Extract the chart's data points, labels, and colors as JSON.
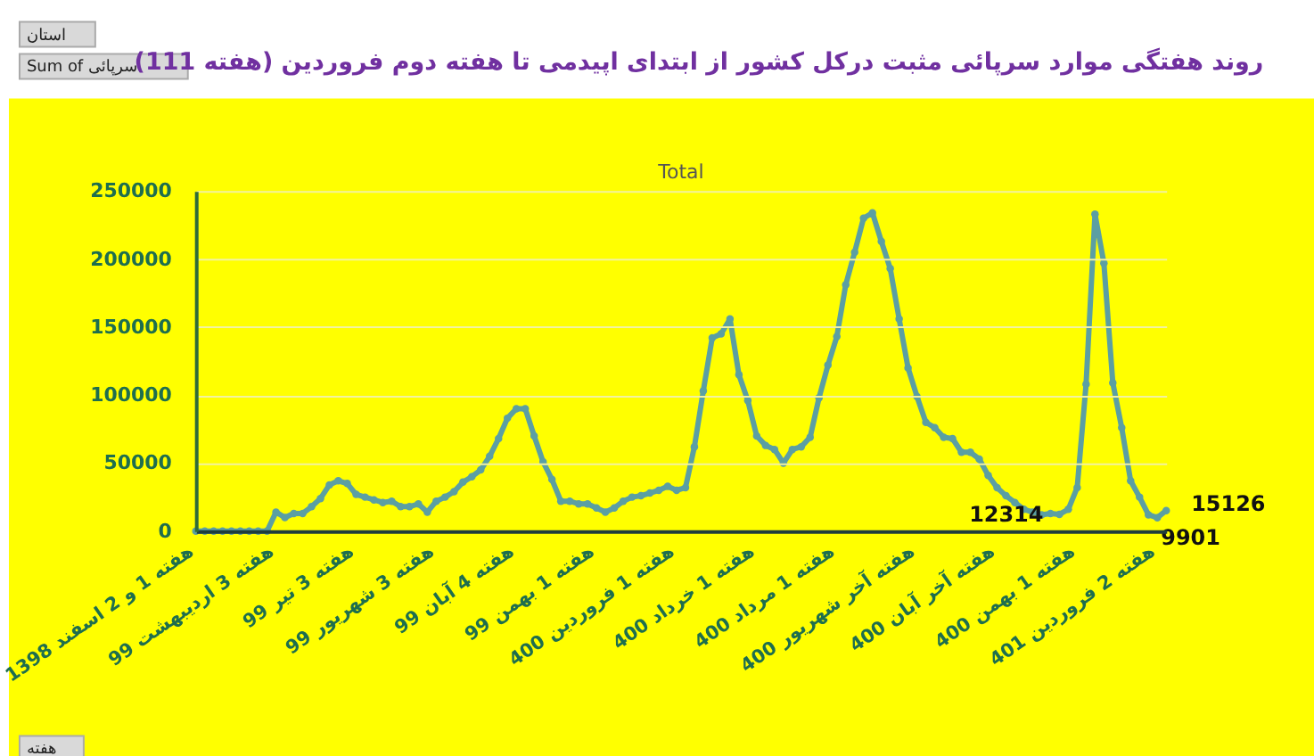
{
  "chart_data": {
    "type": "line",
    "title": "روند هفتگی موارد سرپائی مثبت درکل کشور از ابتدای اپیدمی تا هفته دوم فروردین (هفته 111)",
    "subtitle": "Total",
    "annotations": [
      "استان",
      "Sum of سرپائی",
      "هفته"
    ],
    "categories": [
      "هفته 1 و 2 اسفند 1398",
      null,
      null,
      null,
      null,
      null,
      null,
      null,
      null,
      "هفته 3 اردیبهشت 99",
      null,
      null,
      null,
      null,
      null,
      null,
      null,
      null,
      "هفته 3 تیر 99",
      null,
      null,
      null,
      null,
      null,
      null,
      null,
      null,
      "هفته 3 شهریور 99",
      null,
      null,
      null,
      null,
      null,
      null,
      null,
      null,
      "هفته 4 آبان 99",
      null,
      null,
      null,
      null,
      null,
      null,
      null,
      null,
      "هفته 1 بهمن 99",
      null,
      null,
      null,
      null,
      null,
      null,
      null,
      null,
      "هفته 1 فروردین 400",
      null,
      null,
      null,
      null,
      null,
      null,
      null,
      null,
      "هفته 1 خرداد 400",
      null,
      null,
      null,
      null,
      null,
      null,
      null,
      null,
      "هفته 1 مرداد 400",
      null,
      null,
      null,
      null,
      null,
      null,
      null,
      null,
      "هفته آخر شهریور 400",
      null,
      null,
      null,
      null,
      null,
      null,
      null,
      null,
      "هفته آخر آبان 400",
      null,
      null,
      null,
      null,
      null,
      null,
      null,
      null,
      "هفته 1 بهمن 400",
      null,
      null,
      null,
      null,
      null,
      null,
      null,
      null,
      "هفته 2 فروردین 401",
      null
    ],
    "series": [
      {
        "color": "#5b9fa3",
        "values": [
          0,
          0,
          0,
          0,
          0,
          0,
          0,
          0,
          0,
          14000,
          10000,
          13000,
          13000,
          18000,
          24000,
          34000,
          37000,
          35000,
          27000,
          25000,
          23000,
          21000,
          22000,
          18000,
          18000,
          20000,
          14000,
          22000,
          25000,
          29000,
          36000,
          40000,
          45000,
          55000,
          68000,
          83000,
          90000,
          90000,
          70000,
          51000,
          38000,
          22000,
          22000,
          20000,
          20000,
          17000,
          14000,
          17000,
          22000,
          25000,
          26000,
          28000,
          30000,
          33000,
          30000,
          32000,
          62000,
          103000,
          142000,
          145000,
          156000,
          115000,
          96000,
          70000,
          63000,
          60000,
          50000,
          60000,
          62000,
          69000,
          98000,
          122000,
          143000,
          181000,
          205000,
          230000,
          234000,
          213000,
          193000,
          156000,
          120000,
          99000,
          80000,
          76000,
          69000,
          68000,
          58000,
          58000,
          53000,
          41000,
          32000,
          26000,
          21000,
          16000,
          14000,
          12000,
          13000,
          12314,
          16000,
          32000,
          108000,
          233000,
          197000,
          109000,
          76000,
          37000,
          25000,
          12000,
          9901,
          15126
        ],
        "value_labels": [
          null,
          null,
          null,
          null,
          null,
          null,
          null,
          null,
          null,
          null,
          null,
          null,
          null,
          null,
          null,
          null,
          null,
          null,
          null,
          null,
          null,
          null,
          null,
          null,
          null,
          null,
          null,
          null,
          null,
          null,
          null,
          null,
          null,
          null,
          null,
          null,
          null,
          null,
          null,
          null,
          null,
          null,
          null,
          null,
          null,
          null,
          null,
          null,
          null,
          null,
          null,
          null,
          null,
          null,
          null,
          null,
          null,
          null,
          null,
          null,
          null,
          null,
          null,
          null,
          null,
          null,
          null,
          null,
          null,
          null,
          null,
          null,
          null,
          null,
          null,
          null,
          null,
          null,
          null,
          null,
          null,
          null,
          null,
          null,
          null,
          null,
          null,
          null,
          null,
          null,
          null,
          null,
          null,
          null,
          null,
          null,
          null,
          "12314",
          null,
          null,
          null,
          null,
          null,
          null,
          null,
          null,
          null,
          null,
          "9901",
          "15126"
        ]
      }
    ],
    "ylim": [
      0,
      250000
    ],
    "yticks": [
      0,
      50000,
      100000,
      150000,
      200000,
      250000
    ],
    "grid": "y",
    "legend": false,
    "marker": "circle",
    "line_style": "solid"
  }
}
